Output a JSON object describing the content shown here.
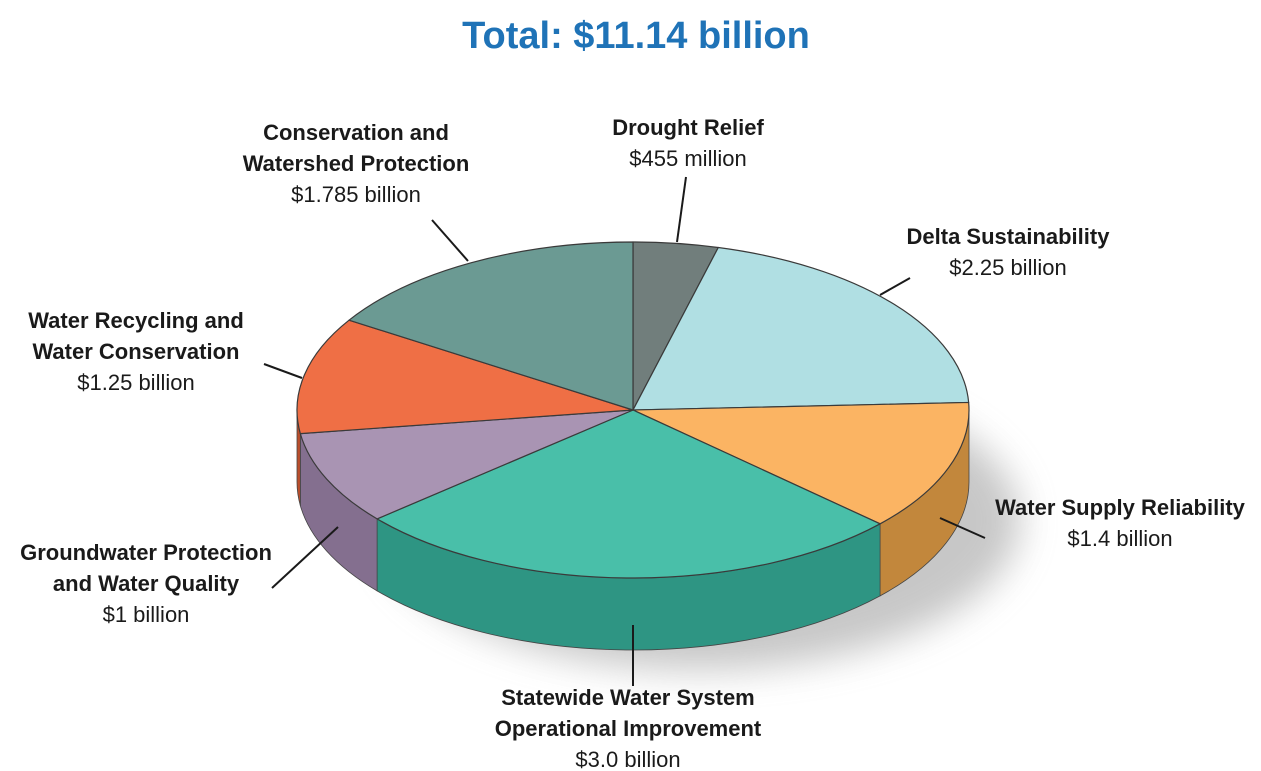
{
  "title": "Total: $11.14 billion",
  "chart_data": {
    "type": "pie",
    "total": 11.14,
    "unit": "billion",
    "slices": [
      {
        "name_lines": [
          "Drought Relief"
        ],
        "value_label": "$455 million",
        "value": 0.455,
        "color": "#717e7c",
        "side_color": "#4f5958"
      },
      {
        "name_lines": [
          "Delta Sustainability"
        ],
        "value_label": "$2.25 billion",
        "value": 2.25,
        "color": "#b0dfe3",
        "side_color": "#7fb1b6"
      },
      {
        "name_lines": [
          "Water Supply Reliability"
        ],
        "value_label": "$1.4 billion",
        "value": 1.4,
        "color": "#fbb463",
        "side_color": "#c2873c"
      },
      {
        "name_lines": [
          "Statewide Water System",
          "Operational Improvement"
        ],
        "value_label": "$3.0 billion",
        "value": 3.0,
        "color": "#49bfa9",
        "side_color": "#2e9583"
      },
      {
        "name_lines": [
          "Groundwater Protection",
          "and Water Quality"
        ],
        "value_label": "$1 billion",
        "value": 1.0,
        "color": "#a994b3",
        "side_color": "#846f8f"
      },
      {
        "name_lines": [
          "Water Recycling and",
          "Water Conservation"
        ],
        "value_label": "$1.25 billion",
        "value": 1.25,
        "color": "#ef6f45",
        "side_color": "#bc4e2b"
      },
      {
        "name_lines": [
          "Conservation and",
          "Watershed Protection"
        ],
        "value_label": "$1.785 billion",
        "value": 1.785,
        "color": "#6b9a93",
        "side_color": "#4a746e"
      }
    ]
  }
}
